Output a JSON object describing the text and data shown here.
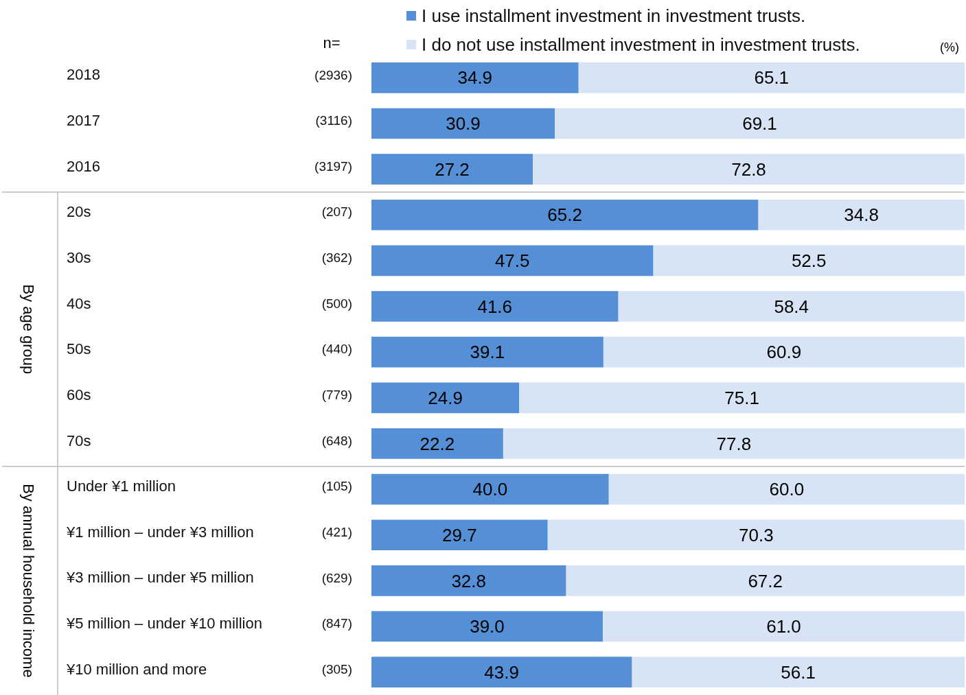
{
  "chart_data": {
    "type": "bar",
    "orientation": "horizontal",
    "stacked": true,
    "legend": "top",
    "categories": [
      "2018",
      "2017",
      "2016",
      "20s",
      "30s",
      "40s",
      "50s",
      "60s",
      "70s",
      "Under ¥1 million",
      "¥1 million – under ¥3 million",
      "¥3 million – under ¥5 million",
      "¥5 million – under ¥10 million",
      "¥10 million and more"
    ],
    "y2_categories": [
      "(2936)",
      "(3116)",
      "(3197)",
      "(207)",
      "(362)",
      "(500)",
      "(440)",
      "(779)",
      "(648)",
      "(105)",
      "(421)",
      "(629)",
      "(847)",
      "(305)"
    ],
    "series": [
      {
        "name": "I use installment investment in investment trusts.",
        "color": "#5590d6",
        "values": [
          34.9,
          30.9,
          27.2,
          65.2,
          47.5,
          41.6,
          39.1,
          24.9,
          22.2,
          40.0,
          29.7,
          32.8,
          39.0,
          43.9
        ],
        "value_labels": [
          "34.9",
          "30.9",
          "27.2",
          "65.2",
          "47.5",
          "41.6",
          "39.1",
          "24.9",
          "22.2",
          "40.0",
          "29.7",
          "32.8",
          "39.0",
          "43.9"
        ]
      },
      {
        "name": "I do not use installment investment in investment trusts.",
        "color": "#d6e4f5",
        "values": [
          65.1,
          69.1,
          72.8,
          34.8,
          52.5,
          58.4,
          60.9,
          75.1,
          77.8,
          60.0,
          70.3,
          67.2,
          61.0,
          56.1
        ],
        "value_labels": [
          "65.1",
          "69.1",
          "72.8",
          "34.8",
          "52.5",
          "58.4",
          "60.9",
          "75.1",
          "77.8",
          "60.0",
          "70.3",
          "67.2",
          "61.0",
          "56.1"
        ]
      }
    ],
    "annotations": [
      "n=",
      "(%)",
      "By age group",
      "By annual household income"
    ]
  }
}
